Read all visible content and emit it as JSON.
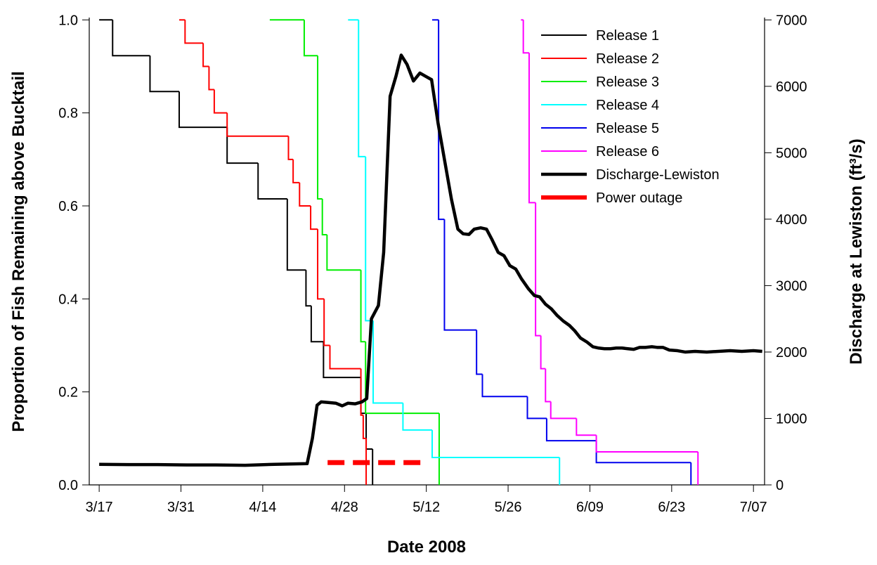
{
  "chart_data": {
    "type": "line",
    "xlabel": "Date 2008",
    "ylabel": "Proportion of Fish Remaining above Bucktail",
    "y2label": "Discharge at Lewiston (ft³/s)",
    "xlim": [
      -1.7,
      113.9
    ],
    "xticks": [
      {
        "value": 0,
        "label": "3/17"
      },
      {
        "value": 14,
        "label": "3/31"
      },
      {
        "value": 28,
        "label": "4/14"
      },
      {
        "value": 42,
        "label": "4/28"
      },
      {
        "value": 56,
        "label": "5/12"
      },
      {
        "value": 70,
        "label": "5/26"
      },
      {
        "value": 84,
        "label": "6/09"
      },
      {
        "value": 98,
        "label": "6/23"
      },
      {
        "value": 112,
        "label": "7/07"
      }
    ],
    "ylim": [
      0,
      1.005
    ],
    "yticks": [
      {
        "value": 0,
        "label": "0.0"
      },
      0.2,
      0.4,
      0.6,
      0.8,
      {
        "value": 1,
        "label": "1.0"
      }
    ],
    "y2lim": [
      0,
      7035
    ],
    "y2ticks": [
      0,
      1000,
      2000,
      3000,
      4000,
      5000,
      6000,
      7000
    ],
    "legend": "upper right",
    "series": [
      {
        "name": "Release 1",
        "color": "#000000",
        "style": "step",
        "x": [
          0,
          2.3,
          8.7,
          13.7,
          21.9,
          27.2,
          32.2,
          35.4,
          36.3,
          38.4,
          44.8,
          45.7,
          46.8
        ],
        "values": [
          1,
          0.923,
          0.846,
          0.769,
          0.692,
          0.615,
          0.462,
          0.385,
          0.308,
          0.231,
          0.154,
          0.077,
          0
        ]
      },
      {
        "name": "Release 2",
        "color": "#ff0000",
        "style": "step",
        "x": [
          13.7,
          14.7,
          17.8,
          18.8,
          19.7,
          21.9,
          32.4,
          33.2,
          34.3,
          36.2,
          37.4,
          38.5,
          39.5,
          44.8,
          45.2,
          45.7
        ],
        "values": [
          1,
          0.95,
          0.9,
          0.85,
          0.8,
          0.75,
          0.7,
          0.65,
          0.6,
          0.55,
          0.4,
          0.3,
          0.25,
          0.15,
          0.1,
          0
        ]
      },
      {
        "name": "Release 3",
        "color": "#00ee00",
        "style": "step",
        "x": [
          29.2,
          35.1,
          37.4,
          38.2,
          39.0,
          44.8,
          45.6,
          58.2
        ],
        "values": [
          1,
          0.923,
          0.615,
          0.538,
          0.462,
          0.308,
          0.154,
          0
        ]
      },
      {
        "name": "Release 4",
        "color": "#00ffff",
        "style": "step",
        "x": [
          42.6,
          44.4,
          45.6,
          46.9,
          52.0,
          57.0,
          78.8
        ],
        "values": [
          1,
          0.706,
          0.353,
          0.176,
          0.118,
          0.059,
          0
        ]
      },
      {
        "name": "Release 5",
        "color": "#0000ee",
        "style": "step",
        "x": [
          57.0,
          58.1,
          59.1,
          64.6,
          65.6,
          73.3,
          76.6,
          85.1,
          101.3
        ],
        "values": [
          1,
          0.571,
          0.333,
          0.238,
          0.19,
          0.143,
          0.095,
          0.048,
          0
        ]
      },
      {
        "name": "Release 6",
        "color": "#ff00ff",
        "style": "step",
        "x": [
          72.2,
          72.6,
          73.6,
          74.7,
          75.6,
          76.4,
          77.3,
          81.7,
          85.1,
          102.5
        ],
        "values": [
          1,
          0.929,
          0.607,
          0.321,
          0.25,
          0.179,
          0.143,
          0.107,
          0.071,
          0
        ]
      },
      {
        "name": "Discharge-Lewiston",
        "color": "#000000",
        "style": "thick",
        "axis": "y2",
        "x": [
          0,
          5,
          10,
          15,
          20,
          25,
          30,
          35.6,
          36.5,
          37.3,
          38.0,
          39.2,
          40.5,
          41.6,
          42.6,
          43.8,
          45.0,
          45.8,
          46.6,
          47.8,
          48.7,
          49.8,
          50.8,
          51.7,
          52.7,
          53.8,
          54.9,
          55.9,
          56.9,
          58.0,
          59.3,
          60.3,
          61.4,
          62.3,
          63.3,
          64.2,
          65.3,
          66.3,
          67.2,
          68.3,
          69.3,
          70.3,
          71.3,
          72.3,
          73.5,
          74.5,
          75.4,
          76.4,
          77.4,
          78.4,
          79.4,
          80.5,
          81.4,
          82.4,
          83.5,
          84.5,
          85.5,
          86.5,
          87.5,
          88.5,
          89.5,
          90.5,
          91.5,
          92.5,
          93.5,
          94.6,
          95.5,
          96.5,
          97.6,
          99.0,
          100.3,
          102,
          104,
          106,
          108,
          110,
          112,
          113.5
        ],
        "values": [
          310,
          305,
          305,
          300,
          300,
          295,
          310,
          320,
          700,
          1200,
          1250,
          1240,
          1230,
          1190,
          1230,
          1220,
          1250,
          1300,
          2500,
          2700,
          3500,
          5850,
          6150,
          6470,
          6330,
          6080,
          6200,
          6150,
          6100,
          5450,
          4800,
          4300,
          3850,
          3780,
          3770,
          3850,
          3870,
          3850,
          3700,
          3500,
          3450,
          3300,
          3250,
          3100,
          2950,
          2850,
          2830,
          2720,
          2650,
          2550,
          2470,
          2400,
          2320,
          2210,
          2150,
          2080,
          2060,
          2050,
          2050,
          2060,
          2060,
          2050,
          2040,
          2070,
          2070,
          2080,
          2070,
          2070,
          2030,
          2020,
          2000,
          2010,
          2000,
          2010,
          2020,
          2010,
          2020,
          2010
        ]
      },
      {
        "name": "Power outage",
        "color": "#ff0000",
        "style": "thick-dashed",
        "x": [
          39.1,
          56.3
        ],
        "values": [
          0.048,
          0.048
        ]
      }
    ]
  }
}
